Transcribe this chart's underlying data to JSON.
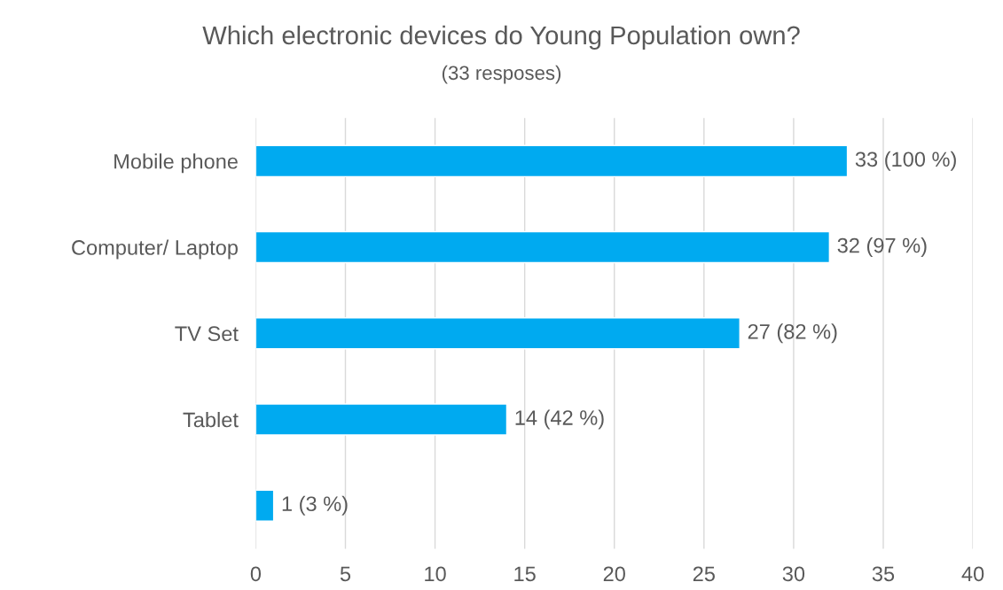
{
  "chart_data": {
    "type": "bar",
    "orientation": "horizontal",
    "title": "Which electronic devices do Young Population own?",
    "subtitle": "(33 resposes)",
    "categories": [
      "Mobile phone",
      "Computer/ Laptop",
      "TV Set",
      "Tablet",
      null
    ],
    "values": [
      33,
      32,
      27,
      14,
      1
    ],
    "value_labels": [
      "33 (100 %)",
      "32 (97 %)",
      "27 (82 %)",
      "14 (42 %)",
      "1 (3 %)"
    ],
    "color": "#00aaf0",
    "xlim": [
      0,
      40
    ],
    "xticks": [
      0,
      5,
      10,
      15,
      20,
      25,
      30,
      35,
      40
    ],
    "grid": "x",
    "legend": false
  }
}
